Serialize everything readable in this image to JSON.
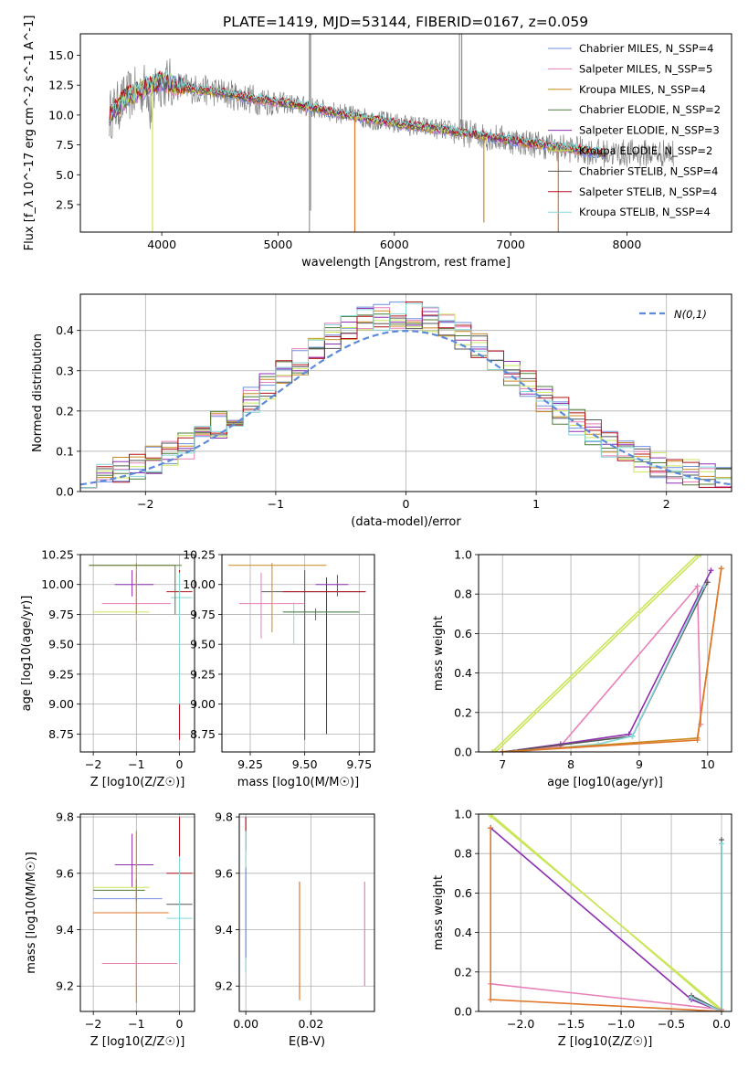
{
  "title": "PLATE=1419, MJD=53144, FIBERID=0167, z=0.059",
  "colors": {
    "chabrier_miles": "#6f8fe0",
    "salpeter_miles": "#e87fb8",
    "kroupa_miles": "#c9891e",
    "chabrier_elodie": "#4e7a3a",
    "salpeter_elodie": "#8e2fb0",
    "kroupa_elodie": "#c9e65a",
    "chabrier_stelib": "#555555",
    "salpeter_stelib": "#b4101a",
    "kroupa_stelib": "#85d6d6",
    "data": "#808080",
    "normal": "#5b8bd9",
    "orange": "#e0762a"
  },
  "chart_data": [
    {
      "type": "line",
      "panel": "spectrum",
      "title": "PLATE=1419, MJD=53144, FIBERID=0167, z=0.059",
      "xlabel": "wavelength [Angstrom, rest frame]",
      "ylabel": "Flux [f_λ 10^-17 erg cm^-2 s^-1 A^-1]",
      "xlim": [
        3300,
        8900
      ],
      "ylim": [
        0.2,
        16.8
      ],
      "xticks": [
        "4000",
        "5000",
        "6000",
        "7000",
        "8000"
      ],
      "yticks": [
        "2.5",
        "5.0",
        "7.5",
        "10.0",
        "12.5",
        "15.0"
      ],
      "legend": {
        "position": "top-right",
        "entries": [
          "Chabrier MILES, N_SSP=4",
          "Salpeter MILES, N_SSP=5",
          "Kroupa MILES, N_SSP=4",
          "Chabrier ELODIE, N_SSP=2",
          "Salpeter ELODIE, N_SSP=3",
          "Kroupa ELODIE, N_SSP=2",
          "Chabrier STELIB, N_SSP=4",
          "Salpeter STELIB, N_SSP=4",
          "Kroupa STELIB, N_SSP=4"
        ]
      },
      "continuum": {
        "x": [
          3550,
          3700,
          3900,
          4000,
          4200,
          4500,
          4800,
          5000,
          5300,
          5600,
          6000,
          6400,
          6800,
          7000,
          7400,
          7800
        ],
        "y": [
          10.0,
          11.5,
          12.5,
          12.8,
          12.3,
          11.9,
          11.3,
          11.1,
          10.6,
          10.0,
          9.3,
          8.8,
          8.2,
          7.9,
          7.3,
          6.8
        ]
      },
      "data_xrange": [
        3550,
        8400
      ],
      "model_xrange": [
        3550,
        7800
      ]
    },
    {
      "type": "step",
      "panel": "residuals",
      "xlabel": "(data-model)/error",
      "ylabel": "Normed distribution",
      "xlim": [
        -2.5,
        2.5
      ],
      "ylim": [
        0,
        0.49
      ],
      "xticks": [
        "−2",
        "−1",
        "0",
        "1",
        "2"
      ],
      "yticks": [
        "0.0",
        "0.1",
        "0.2",
        "0.3",
        "0.4"
      ],
      "legend": {
        "position": "top-right",
        "entries": [
          "N(0,1)"
        ]
      },
      "gaussian_label": "N(0,1)",
      "gaussian": {
        "mean": 0,
        "sigma": 1
      }
    },
    {
      "type": "scatter",
      "panel": "age-vs-Z",
      "xlabel": "Z [log10(Z/Z☉)]",
      "ylabel": "age  [log10(age/yr)]",
      "xlim": [
        -2.3,
        0.35
      ],
      "ylim": [
        8.6,
        10.25
      ],
      "xticks": [
        "−2",
        "−1",
        "0"
      ],
      "yticks": [
        "8.75",
        "9.00",
        "9.25",
        "9.50",
        "9.75",
        "10.00",
        "10.25"
      ]
    },
    {
      "type": "scatter",
      "panel": "age-vs-mass",
      "xlabel": "mass [log10(M/M☉)]",
      "xlim": [
        9.12,
        9.82
      ],
      "ylim": [
        8.6,
        10.25
      ],
      "xticks": [
        "9.25",
        "9.50",
        "9.75"
      ],
      "yticks": [
        "8.75",
        "9.00",
        "9.25",
        "9.50",
        "9.75",
        "10.00",
        "10.25"
      ]
    },
    {
      "type": "line",
      "panel": "mass-weight-vs-age",
      "xlabel": "age  [log10(age/yr)]",
      "ylabel": "mass weight",
      "xlim": [
        6.65,
        10.35
      ],
      "ylim": [
        0,
        1
      ],
      "xticks": [
        "7",
        "8",
        "9",
        "10"
      ],
      "yticks": [
        "0.0",
        "0.2",
        "0.4",
        "0.6",
        "0.8",
        "1.0"
      ]
    },
    {
      "type": "scatter",
      "panel": "mass-vs-Z",
      "xlabel": "Z [log10(Z/Z☉)]",
      "ylabel": "mass [log10(M/M☉)]",
      "xlim": [
        -2.3,
        0.35
      ],
      "ylim": [
        9.11,
        9.81
      ],
      "xticks": [
        "−2",
        "−1",
        "0"
      ],
      "yticks": [
        "9.2",
        "9.4",
        "9.6",
        "9.8"
      ]
    },
    {
      "type": "scatter",
      "panel": "mass-vs-EBV",
      "xlabel": "E(B-V)",
      "xlim": [
        -0.002,
        0.0395
      ],
      "ylim": [
        9.11,
        9.81
      ],
      "xticks": [
        "0.00",
        "0.02"
      ],
      "yticks": [
        "9.2",
        "9.4",
        "9.6",
        "9.8"
      ]
    },
    {
      "type": "line",
      "panel": "mass-weight-vs-Z",
      "xlabel": "Z [log10(Z/Z☉)]",
      "ylabel": "mass weight",
      "xlim": [
        -2.42,
        0.1
      ],
      "ylim": [
        0,
        1
      ],
      "xticks": [
        "−2.0",
        "−1.5",
        "−1.0",
        "−0.5",
        "0.0"
      ],
      "yticks": [
        "0.0",
        "0.2",
        "0.4",
        "0.6",
        "0.8",
        "1.0"
      ]
    }
  ]
}
